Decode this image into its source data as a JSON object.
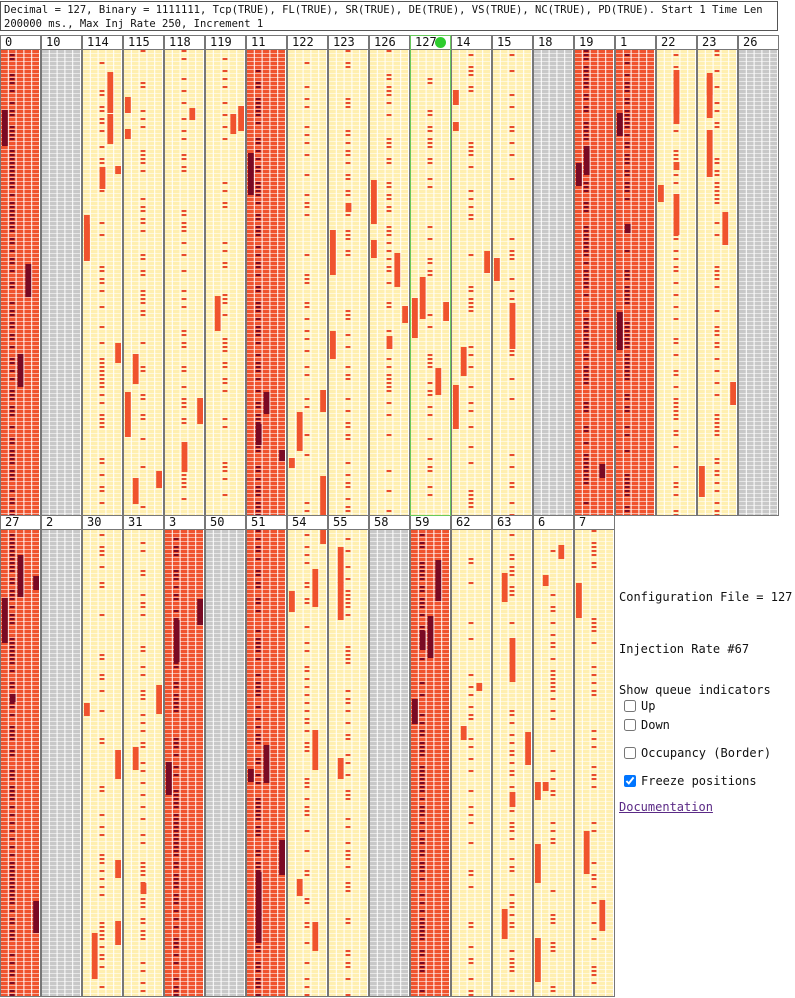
{
  "header": {
    "text": "Decimal = 127, Binary = 1111111, Tcp(TRUE), FL(TRUE), SR(TRUE), DE(TRUE), VS(TRUE), NC(TRUE), PD(TRUE). Start 1 Time Len 200000 ms., Max Inj Rate 250, Increment 1"
  },
  "colors": {
    "light": "#ffefb0",
    "orange": "#f0532e",
    "red": "#e84a2e",
    "dark": "#7a0a24",
    "gray": "#c8c8c8",
    "grid_white": "#ffffff",
    "highlight_border": "#67c85c",
    "green_dot": "#2ecc2e"
  },
  "grid": {
    "row1": [
      {
        "label": "0",
        "style": "orange"
      },
      {
        "label": "10",
        "style": "gray"
      },
      {
        "label": "114",
        "style": "light"
      },
      {
        "label": "115",
        "style": "light"
      },
      {
        "label": "118",
        "style": "light"
      },
      {
        "label": "119",
        "style": "light"
      },
      {
        "label": "11",
        "style": "orange"
      },
      {
        "label": "122",
        "style": "light"
      },
      {
        "label": "123",
        "style": "light"
      },
      {
        "label": "126",
        "style": "light"
      },
      {
        "label": "127",
        "style": "light",
        "selected": true
      },
      {
        "label": "14",
        "style": "light"
      },
      {
        "label": "15",
        "style": "light"
      },
      {
        "label": "18",
        "style": "gray"
      },
      {
        "label": "19",
        "style": "orange"
      },
      {
        "label": "1",
        "style": "orange"
      },
      {
        "label": "22",
        "style": "light"
      },
      {
        "label": "23",
        "style": "light"
      },
      {
        "label": "26",
        "style": "gray"
      }
    ],
    "row2": [
      {
        "label": "27",
        "style": "orange"
      },
      {
        "label": "2",
        "style": "gray"
      },
      {
        "label": "30",
        "style": "light"
      },
      {
        "label": "31",
        "style": "light"
      },
      {
        "label": "3",
        "style": "orange"
      },
      {
        "label": "50",
        "style": "gray"
      },
      {
        "label": "51",
        "style": "orange"
      },
      {
        "label": "54",
        "style": "light"
      },
      {
        "label": "55",
        "style": "light"
      },
      {
        "label": "58",
        "style": "gray"
      },
      {
        "label": "59",
        "style": "orange"
      },
      {
        "label": "62",
        "style": "light"
      },
      {
        "label": "63",
        "style": "light"
      },
      {
        "label": "6",
        "style": "light"
      },
      {
        "label": "7",
        "style": "light"
      }
    ]
  },
  "sidebar": {
    "config_text": "Configuration File = 127",
    "injection_text": "Injection Rate #67",
    "queue_heading": "Show queue indicators",
    "up_label": "Up",
    "up_checked": false,
    "down_label": "Down",
    "down_checked": false,
    "occupancy_label": "Occupancy (Border)",
    "occupancy_checked": false,
    "freeze_label": "Freeze positions",
    "freeze_checked": true,
    "doc_link": "Documentation"
  }
}
